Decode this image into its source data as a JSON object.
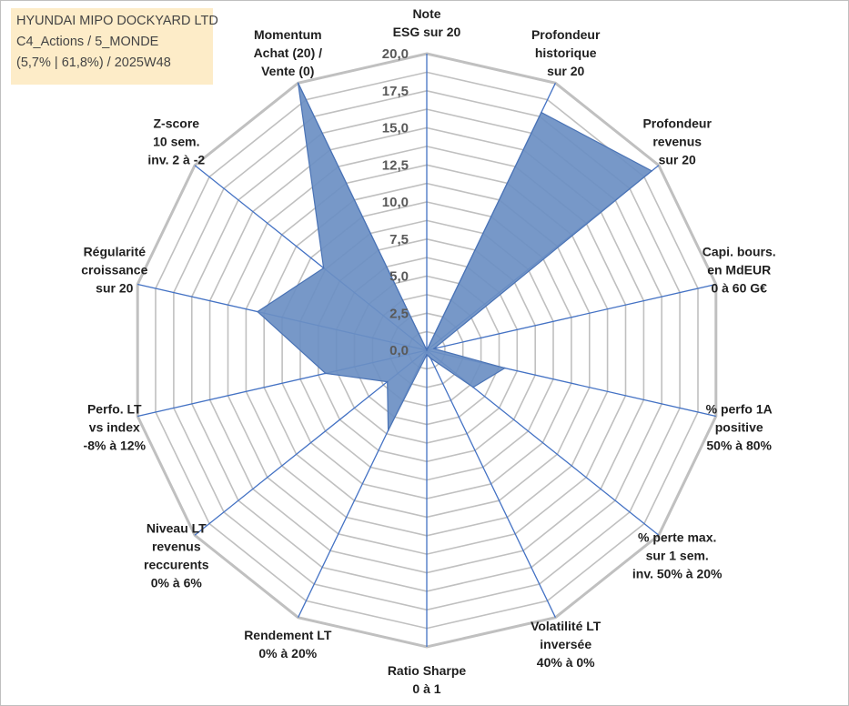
{
  "header": {
    "company": "HYUNDAI MIPO DOCKYARD LTD",
    "category": "C4_Actions / 5_MONDE",
    "stats": "(5,7% | 61,8%) / 2025W48"
  },
  "colors": {
    "grid": "#c0c0c0",
    "spoke": "#4472c4",
    "fill": "#6b8fc3",
    "stroke": "#4a73b5",
    "box": "#fdebc6"
  },
  "chart_data": {
    "type": "radar",
    "title": "",
    "rmax": 20,
    "ticks": [
      "0,0",
      "2,5",
      "5,0",
      "7,5",
      "10,0",
      "12,5",
      "15,0",
      "17,5",
      "20,0"
    ],
    "axes": [
      {
        "lines": [
          "Note",
          "ESG sur 20"
        ],
        "value": 0
      },
      {
        "lines": [
          "Profondeur",
          "historique",
          "sur 20"
        ],
        "value": 17.8
      },
      {
        "lines": [
          "Profondeur",
          "revenus",
          "sur 20"
        ],
        "value": 19.4
      },
      {
        "lines": [
          "Capi. bours.",
          "en MdEUR",
          "0 à 60 G€"
        ],
        "value": 0.5
      },
      {
        "lines": [
          "% perfo 1A",
          "positive",
          "50% à 80%"
        ],
        "value": 5.4
      },
      {
        "lines": [
          "% perte max.",
          "sur 1 sem.",
          "inv. 50% à 20%"
        ],
        "value": 4.0
      },
      {
        "lines": [
          "Volatilité LT",
          "inversée",
          "40% à 0%"
        ],
        "value": 0.6
      },
      {
        "lines": [
          "Ratio Sharpe",
          "0 à 1"
        ],
        "value": 0.3
      },
      {
        "lines": [
          "Rendement LT",
          "0% à 20%"
        ],
        "value": 6.0
      },
      {
        "lines": [
          "Niveau LT",
          "revenus",
          "reccurents",
          "0% à 6%"
        ],
        "value": 3.4
      },
      {
        "lines": [
          "Perfo. LT",
          "vs index",
          "-8% à 12%"
        ],
        "value": 7.0
      },
      {
        "lines": [
          "Régularité",
          "croissance",
          "sur 20"
        ],
        "value": 11.7
      },
      {
        "lines": [
          "Z-score",
          "10 sem.",
          "inv. 2 à -2"
        ],
        "value": 8.9
      },
      {
        "lines": [
          "Momentum",
          "Achat (20) /",
          "Vente (0)"
        ],
        "value": 20.0
      }
    ]
  }
}
